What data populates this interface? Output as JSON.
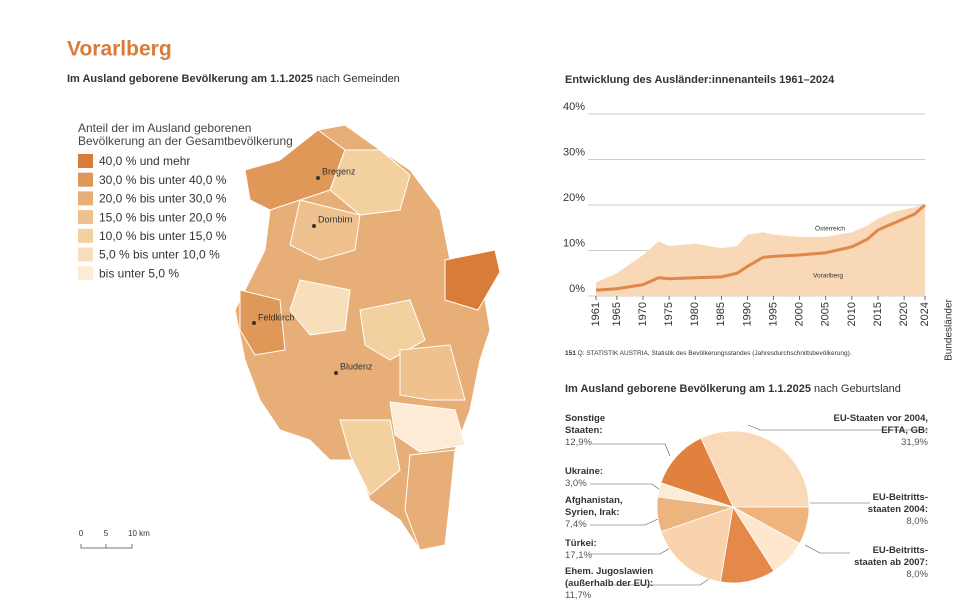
{
  "header": {
    "title": "Vorarlberg"
  },
  "map": {
    "title_bold": "Im Ausland geborene Bevölkerung am 1.1.2025",
    "title_rest": " nach Gemeinden",
    "legend_title": "Anteil der im Ausland geborenen Bevölkerung an der Gesamtbevölkerung",
    "legend": [
      {
        "label": "40,0 % und mehr",
        "color": "#d97b39"
      },
      {
        "label": "30,0 % bis unter 40,0 %",
        "color": "#e09858"
      },
      {
        "label": "20,0 % bis unter 30,0 %",
        "color": "#e8ae78"
      },
      {
        "label": "15,0 % bis unter 20,0 %",
        "color": "#eec18f"
      },
      {
        "label": "10,0 % bis unter 15,0 %",
        "color": "#f3d19f"
      },
      {
        "label": "5,0 % bis unter 10,0 %",
        "color": "#f8dfbc"
      },
      {
        "label": "bis unter 5,0 %",
        "color": "#fdebd5"
      }
    ],
    "cities": [
      "Bregenz",
      "Dornbirn",
      "Feldkirch",
      "Bludenz"
    ],
    "scale": [
      "0",
      "5",
      "10 km"
    ]
  },
  "chart_data": [
    {
      "type": "line",
      "title": "Entwicklung des Ausländer:innenanteils 1961–2024",
      "x": [
        1961,
        1965,
        1970,
        1973,
        1975,
        1980,
        1985,
        1988,
        1990,
        1993,
        1995,
        2000,
        2005,
        2010,
        2013,
        2015,
        2018,
        2020,
        2022,
        2024
      ],
      "xlim": [
        1961,
        2024
      ],
      "xticks": [
        1961,
        1965,
        1970,
        1975,
        1980,
        1985,
        1990,
        1995,
        2000,
        2005,
        2010,
        2015,
        2020,
        2024
      ],
      "ylim": [
        0,
        40
      ],
      "yticks": [
        {
          "value": 0,
          "label": "0%"
        },
        {
          "value": 10,
          "label": "10%"
        },
        {
          "value": 20,
          "label": "20%"
        },
        {
          "value": 30,
          "label": "30%"
        },
        {
          "value": 40,
          "label": "40%"
        }
      ],
      "grid": true,
      "series": [
        {
          "name": "Vorarlberg",
          "color": "#e0874a",
          "style": "line",
          "values": [
            1.3,
            1.6,
            2.5,
            4,
            3.8,
            4,
            4.2,
            5,
            6.5,
            8.5,
            8.7,
            9,
            9.5,
            10.8,
            12.5,
            14.5,
            16,
            17,
            18,
            20
          ]
        },
        {
          "name": "Österreich",
          "color": "#f9d8b7",
          "style": "area",
          "values": [
            3,
            5,
            9,
            12,
            11,
            11.5,
            10.5,
            11,
            13.5,
            14,
            13.5,
            13,
            13,
            14,
            15.5,
            17,
            18.5,
            19,
            19.5,
            20
          ]
        }
      ]
    },
    {
      "type": "pie",
      "title_bold": "Im Ausland geborene Bevölkerung am 1.1.2025",
      "title_rest": " nach Geburtsland",
      "categories": [
        "EU-Staaten vor 2004, EFTA, GB:",
        "EU-Beitritts-staaten 2004:",
        "EU-Beitritts-staaten ab 2007:",
        "Ehem. Jugoslawien (außerhalb der EU):",
        "Türkei:",
        "Afghanistan, Syrien, Irak:",
        "Ukraine:",
        "Sonstige Staaten:"
      ],
      "values": [
        31.9,
        8.0,
        8.0,
        11.7,
        17.1,
        7.4,
        3.0,
        12.9
      ],
      "value_labels": [
        "31,9%",
        "8,0%",
        "8,0%",
        "11,7%",
        "17,1%",
        "7,4%",
        "3,0%",
        "12,9%"
      ],
      "colors": [
        "#fad9b8",
        "#eeb47c",
        "#fde8cf",
        "#e4894a",
        "#f8d3ae",
        "#ecb47e",
        "#fcebd6",
        "#e0823d"
      ]
    }
  ],
  "source": {
    "number": "151",
    "text": " Q: STATISTIK AUSTRIA, Statistik des Bevölkerungsstandes (Jahresdurchschnittsbevölkerung)."
  },
  "side_label": "Bundesländer"
}
